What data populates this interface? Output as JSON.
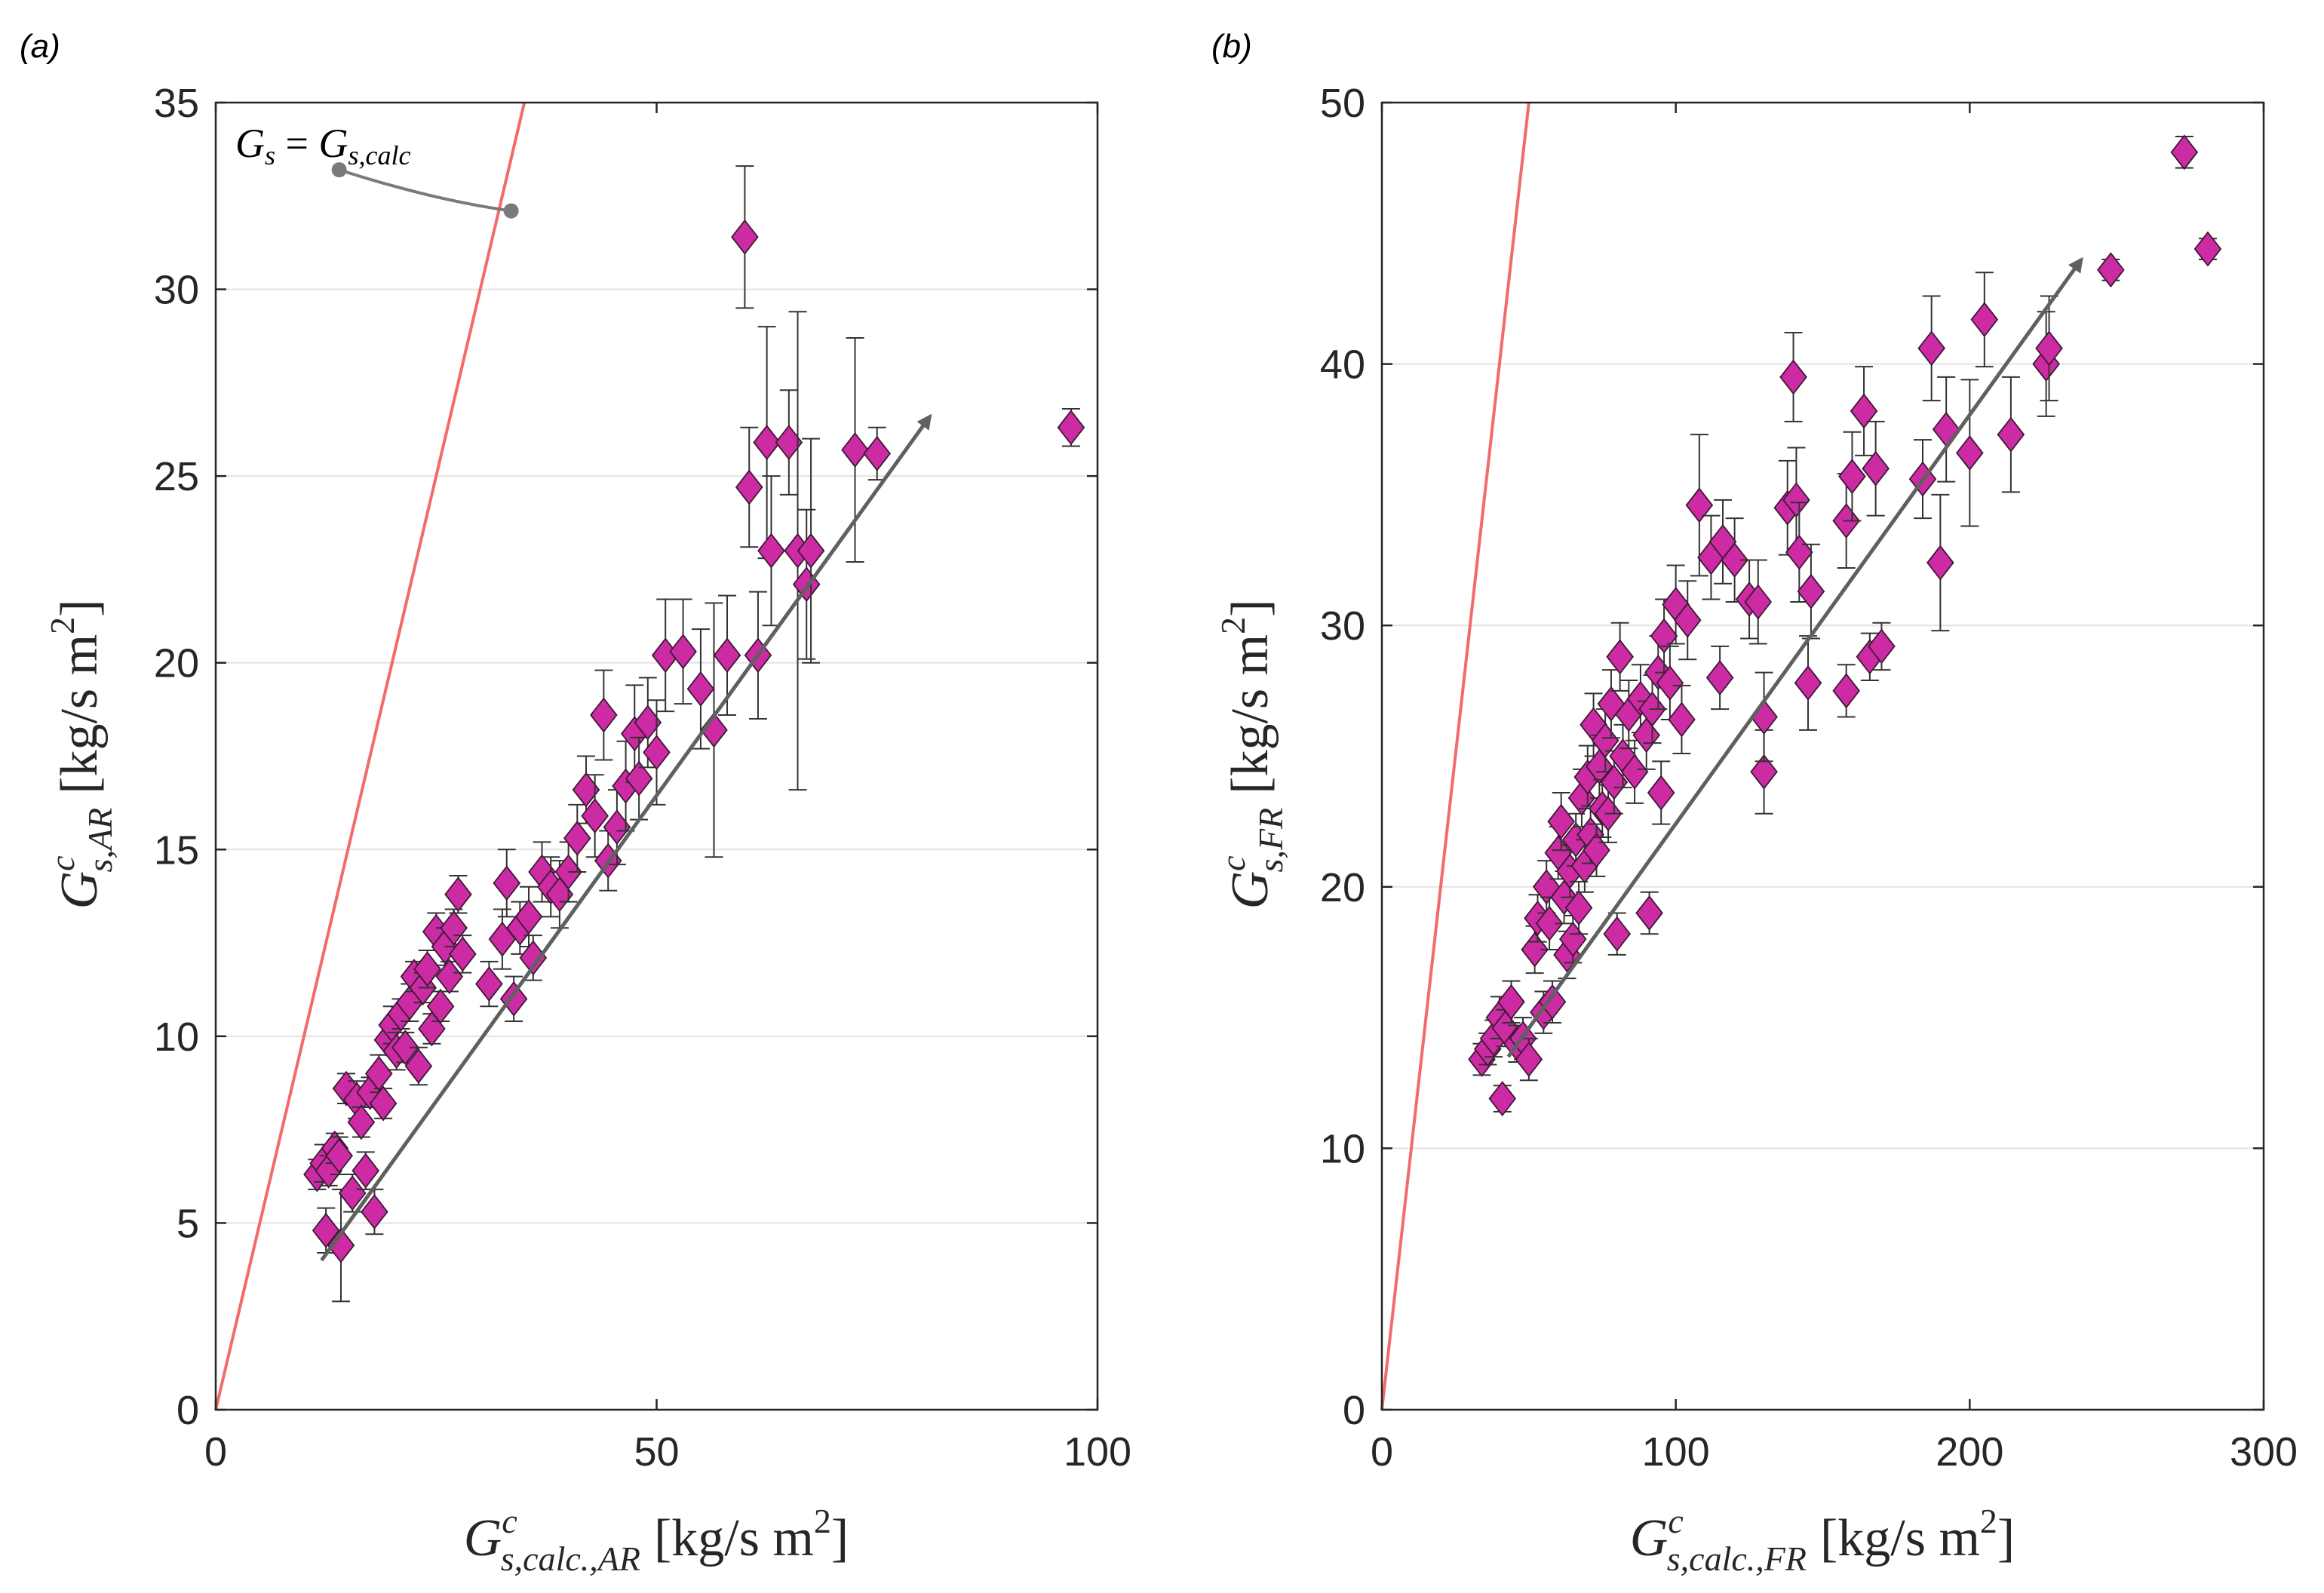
{
  "chart_data": [
    {
      "panel_label": "(a)",
      "type": "scatter",
      "x_label": {
        "base": "G",
        "sup": "c",
        "sub": "s,calc.,AR",
        "units": "[kg/s m",
        "units_sup": "2",
        "units_end": "]"
      },
      "y_label": {
        "base": "G",
        "sup": "c",
        "sub": "s,AR",
        "units": "[kg/s m",
        "units_sup": "2",
        "units_end": "]"
      },
      "xlim": [
        0,
        100
      ],
      "ylim": [
        0,
        35
      ],
      "x_ticks": [
        "0",
        "50",
        "100"
      ],
      "y_ticks": [
        "0",
        "5",
        "10",
        "15",
        "20",
        "25",
        "30",
        "35"
      ],
      "x_tick_values": [
        0,
        50,
        100
      ],
      "y_tick_values": [
        0,
        5,
        10,
        15,
        20,
        25,
        30,
        35
      ],
      "grid": "horizontal",
      "identity_line": {
        "label": "Gs = Gs,calc",
        "color": "#f26b6b"
      },
      "annotation": {
        "left": "G",
        "left_sub": "s",
        "eq": " = ",
        "right": "G",
        "right_sub": "s,calc",
        "from": [
          14,
          33.2
        ],
        "to": [
          33.5,
          32.1
        ]
      },
      "trend_arrow": {
        "from": [
          12,
          4.0
        ],
        "to": [
          81,
          26.6
        ],
        "color": "#606060"
      },
      "marker_color": "#cc2ba3",
      "points": [
        [
          11.5,
          6.3,
          0.4
        ],
        [
          12.2,
          6.6,
          0.5
        ],
        [
          12.8,
          6.4,
          0.4
        ],
        [
          13.5,
          7.0,
          0.4
        ],
        [
          14.0,
          6.8,
          0.5
        ],
        [
          12.5,
          4.8,
          0.6
        ],
        [
          14.2,
          4.4,
          1.5
        ],
        [
          14.8,
          8.6,
          0.4
        ],
        [
          15.5,
          5.8,
          0.5
        ],
        [
          16.0,
          8.3,
          0.5
        ],
        [
          16.5,
          7.7,
          0.4
        ],
        [
          17.0,
          6.4,
          0.5
        ],
        [
          17.5,
          8.5,
          0.4
        ],
        [
          18.0,
          5.3,
          0.6
        ],
        [
          18.5,
          9.0,
          0.5
        ],
        [
          19.0,
          8.2,
          0.4
        ],
        [
          19.5,
          9.9,
          0.4
        ],
        [
          20.0,
          10.3,
          0.5
        ],
        [
          20.5,
          9.6,
          0.5
        ],
        [
          21.0,
          10.6,
          0.4
        ],
        [
          21.5,
          9.7,
          0.4
        ],
        [
          22.0,
          10.9,
          0.5
        ],
        [
          22.5,
          11.6,
          0.4
        ],
        [
          23.0,
          9.2,
          0.5
        ],
        [
          23.5,
          11.3,
          0.4
        ],
        [
          24.0,
          11.8,
          0.5
        ],
        [
          24.5,
          10.2,
          0.4
        ],
        [
          25.0,
          12.8,
          0.5
        ],
        [
          25.5,
          10.8,
          0.4
        ],
        [
          26.0,
          12.4,
          0.5
        ],
        [
          26.5,
          11.6,
          0.4
        ],
        [
          27.0,
          12.9,
          0.5
        ],
        [
          27.5,
          13.8,
          0.5
        ],
        [
          28.0,
          12.2,
          0.5
        ],
        [
          31.0,
          11.4,
          0.6
        ],
        [
          32.5,
          12.6,
          0.8
        ],
        [
          33.0,
          14.1,
          0.9
        ],
        [
          33.8,
          11.0,
          0.6
        ],
        [
          34.5,
          12.9,
          0.7
        ],
        [
          35.5,
          13.2,
          0.8
        ],
        [
          36.0,
          12.1,
          0.6
        ],
        [
          37.0,
          14.4,
          0.8
        ],
        [
          38.0,
          14.0,
          0.8
        ],
        [
          39.0,
          13.8,
          0.9
        ],
        [
          40.0,
          14.4,
          0.8
        ],
        [
          41.0,
          15.3,
          0.9
        ],
        [
          42.0,
          16.6,
          0.9
        ],
        [
          43.0,
          15.9,
          1.1
        ],
        [
          44.0,
          18.6,
          1.2
        ],
        [
          44.5,
          14.7,
          0.8
        ],
        [
          45.5,
          15.6,
          1.0
        ],
        [
          46.5,
          16.7,
          1.2
        ],
        [
          47.5,
          18.1,
          1.3
        ],
        [
          48.0,
          16.9,
          1.1
        ],
        [
          49.0,
          18.4,
          1.2
        ],
        [
          50.0,
          17.6,
          1.4
        ],
        [
          51.0,
          20.2,
          1.5
        ],
        [
          53.0,
          20.3,
          1.4
        ],
        [
          55.0,
          19.3,
          1.6
        ],
        [
          56.5,
          18.2,
          3.4
        ],
        [
          58.0,
          20.2,
          1.6
        ],
        [
          60.0,
          31.4,
          1.9
        ],
        [
          60.5,
          24.7,
          1.6
        ],
        [
          61.5,
          20.2,
          1.7
        ],
        [
          62.5,
          25.9,
          3.1
        ],
        [
          63.0,
          23.0,
          2.0
        ],
        [
          65.0,
          25.9,
          1.4
        ],
        [
          66.0,
          23.0,
          6.4
        ],
        [
          67.0,
          22.1,
          2.0
        ],
        [
          67.5,
          23.0,
          3.0
        ],
        [
          72.5,
          25.7,
          3.0
        ],
        [
          75.0,
          25.6,
          0.7
        ],
        [
          97.0,
          26.3,
          0.5
        ]
      ]
    },
    {
      "panel_label": "(b)",
      "type": "scatter",
      "x_label": {
        "base": "G",
        "sup": "c",
        "sub": "s,calc.,FR",
        "units": "[kg/s m",
        "units_sup": "2",
        "units_end": "]"
      },
      "y_label": {
        "base": "G",
        "sup": "c",
        "sub": "s,FR",
        "units": "[kg/s m",
        "units_sup": "2",
        "units_end": "]"
      },
      "xlim": [
        0,
        300
      ],
      "ylim": [
        0,
        50
      ],
      "x_ticks": [
        "0",
        "100",
        "200",
        "300"
      ],
      "y_ticks": [
        "0",
        "10",
        "20",
        "30",
        "40",
        "50"
      ],
      "x_tick_values": [
        0,
        100,
        200,
        300
      ],
      "y_tick_values": [
        0,
        10,
        20,
        30,
        40,
        50
      ],
      "grid": "horizontal",
      "identity_line": {
        "color": "#f26b6b"
      },
      "trend_arrow": {
        "from": [
          43,
          13.5
        ],
        "to": [
          238,
          44.0
        ],
        "color": "#606060"
      },
      "marker_color": "#cc2ba3",
      "points": [
        [
          34,
          13.4,
          0.6
        ],
        [
          36,
          13.8,
          0.6
        ],
        [
          38,
          14.2,
          0.7
        ],
        [
          40,
          15.0,
          0.8
        ],
        [
          41,
          11.9,
          0.5
        ],
        [
          42,
          14.6,
          0.7
        ],
        [
          44,
          15.6,
          0.8
        ],
        [
          46,
          14.0,
          0.7
        ],
        [
          48,
          14.2,
          0.8
        ],
        [
          50,
          13.4,
          0.8
        ],
        [
          52,
          17.6,
          0.9
        ],
        [
          53,
          18.8,
          0.9
        ],
        [
          55,
          15.2,
          0.8
        ],
        [
          56,
          20.0,
          1.0
        ],
        [
          57,
          18.6,
          1.0
        ],
        [
          58,
          15.6,
          0.8
        ],
        [
          60,
          21.3,
          1.0
        ],
        [
          61,
          22.5,
          1.1
        ],
        [
          62,
          19.6,
          1.0
        ],
        [
          63,
          17.4,
          0.9
        ],
        [
          64,
          20.6,
          1.0
        ],
        [
          65,
          18.0,
          0.9
        ],
        [
          66,
          21.8,
          1.0
        ],
        [
          67,
          19.2,
          1.0
        ],
        [
          68,
          23.4,
          1.1
        ],
        [
          69,
          20.8,
          1.0
        ],
        [
          70,
          24.2,
          1.2
        ],
        [
          71,
          22.0,
          1.1
        ],
        [
          72,
          26.2,
          1.2
        ],
        [
          73,
          21.4,
          1.0
        ],
        [
          74,
          24.6,
          1.2
        ],
        [
          75,
          23.0,
          1.1
        ],
        [
          76,
          25.6,
          1.2
        ],
        [
          77,
          22.8,
          1.1
        ],
        [
          78,
          27.0,
          1.3
        ],
        [
          79,
          24.0,
          1.2
        ],
        [
          80,
          18.2,
          0.8
        ],
        [
          81,
          28.8,
          1.3
        ],
        [
          82,
          25.0,
          1.2
        ],
        [
          84,
          26.6,
          1.3
        ],
        [
          86,
          24.4,
          1.2
        ],
        [
          88,
          27.2,
          1.3
        ],
        [
          90,
          25.8,
          1.3
        ],
        [
          91,
          19.0,
          0.8
        ],
        [
          92,
          26.8,
          1.3
        ],
        [
          94,
          28.2,
          1.4
        ],
        [
          95,
          23.6,
          1.2
        ],
        [
          96,
          29.6,
          1.4
        ],
        [
          98,
          27.8,
          1.4
        ],
        [
          100,
          30.8,
          1.5
        ],
        [
          102,
          26.4,
          1.3
        ],
        [
          104,
          30.2,
          1.5
        ],
        [
          108,
          34.6,
          2.7
        ],
        [
          112,
          32.6,
          1.6
        ],
        [
          116,
          33.2,
          1.6
        ],
        [
          115,
          28.0,
          1.2
        ],
        [
          120,
          32.5,
          1.6
        ],
        [
          125,
          31.0,
          1.5
        ],
        [
          128,
          30.9,
          1.6
        ],
        [
          130,
          24.4,
          1.6
        ],
        [
          130,
          26.5,
          1.7
        ],
        [
          138,
          34.5,
          1.8
        ],
        [
          140,
          39.5,
          1.7
        ],
        [
          141,
          34.8,
          2.0
        ],
        [
          142,
          32.8,
          1.9
        ],
        [
          145,
          27.8,
          1.8
        ],
        [
          146,
          31.3,
          1.8
        ],
        [
          158,
          34.0,
          1.8
        ],
        [
          158,
          27.5,
          1.0
        ],
        [
          160,
          35.7,
          1.7
        ],
        [
          164,
          38.2,
          1.7
        ],
        [
          166,
          28.8,
          0.9
        ],
        [
          168,
          36.0,
          1.8
        ],
        [
          170,
          29.2,
          0.9
        ],
        [
          184,
          35.6,
          1.5
        ],
        [
          187,
          40.6,
          2.0
        ],
        [
          190,
          32.4,
          2.6
        ],
        [
          192,
          37.5,
          2.0
        ],
        [
          200,
          36.6,
          2.8
        ],
        [
          205,
          41.7,
          1.8
        ],
        [
          214,
          37.3,
          2.2
        ],
        [
          226,
          40.0,
          2.0
        ],
        [
          227,
          40.6,
          2.0
        ],
        [
          248,
          43.6,
          0.4
        ],
        [
          273,
          48.1,
          0.6
        ],
        [
          281,
          44.4,
          0.4
        ]
      ]
    }
  ]
}
